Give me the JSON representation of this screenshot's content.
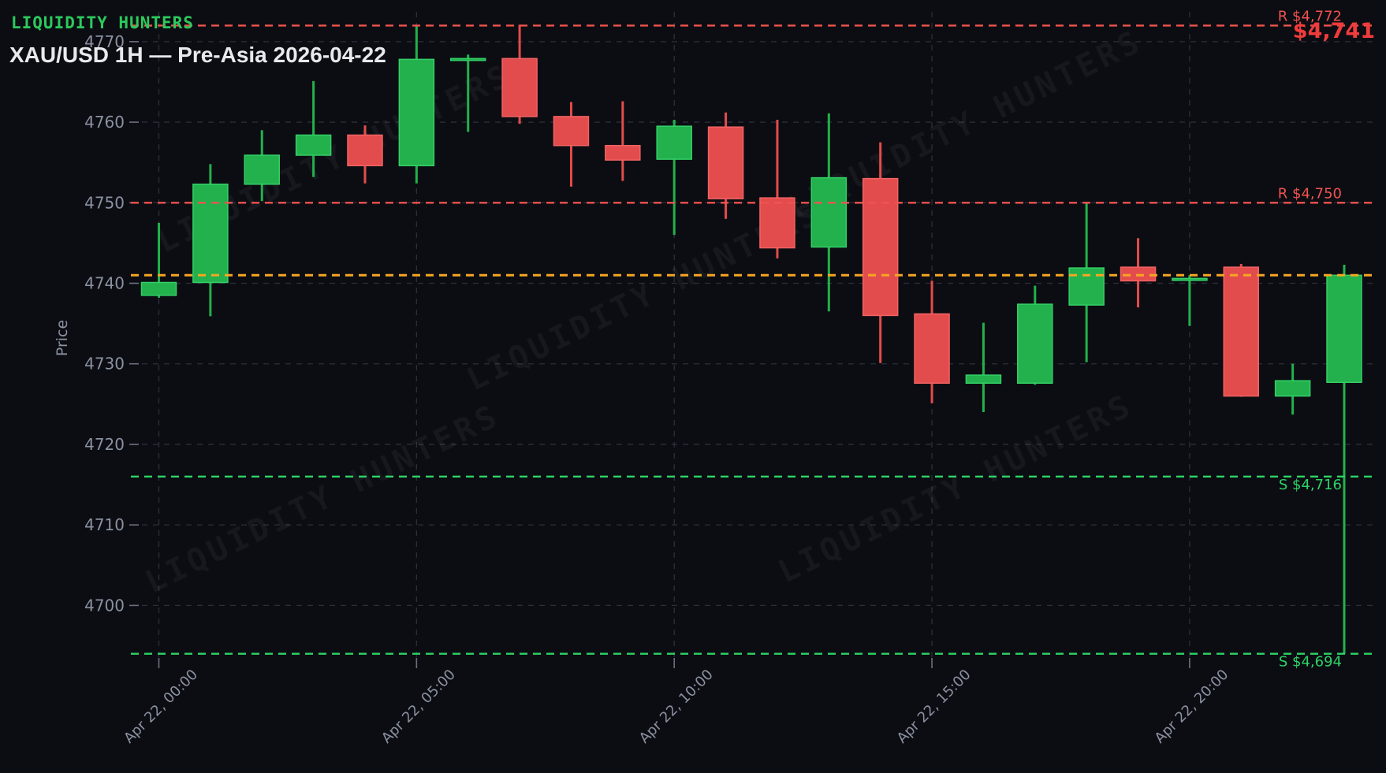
{
  "header": {
    "brand": "LIQUIDITY HUNTERS",
    "title": "XAU/USD 1H — Pre-Asia 2026-04-22"
  },
  "chart_data": {
    "type": "candlestick",
    "title": "XAU/USD 1H — Pre-Asia 2026-04-22",
    "watermark": "LIQUIDITY HUNTERS",
    "ylabel": "Price",
    "ylim": [
      4692.7,
      4773.8
    ],
    "y_ticks": [
      4700,
      4710,
      4720,
      4730,
      4740,
      4750,
      4760,
      4770
    ],
    "x_ticks": [
      {
        "label": "Apr 22, 00:00",
        "index": 0
      },
      {
        "label": "Apr 22, 05:00",
        "index": 5
      },
      {
        "label": "Apr 22, 10:00",
        "index": 10
      },
      {
        "label": "Apr 22, 15:00",
        "index": 15
      },
      {
        "label": "Apr 22, 20:00",
        "index": 20
      }
    ],
    "candles": [
      {
        "o": 4738.5,
        "h": 4747.5,
        "l": 4738.2,
        "c": 4740.1
      },
      {
        "o": 4740.1,
        "h": 4754.8,
        "l": 4735.9,
        "c": 4752.3
      },
      {
        "o": 4752.3,
        "h": 4759.0,
        "l": 4750.2,
        "c": 4755.9
      },
      {
        "o": 4755.9,
        "h": 4765.1,
        "l": 4753.2,
        "c": 4758.4
      },
      {
        "o": 4758.4,
        "h": 4759.6,
        "l": 4752.4,
        "c": 4754.6
      },
      {
        "o": 4754.6,
        "h": 4772.0,
        "l": 4752.4,
        "c": 4767.8
      },
      {
        "o": 4767.8,
        "h": 4768.4,
        "l": 4758.8,
        "c": 4767.9
      },
      {
        "o": 4767.9,
        "h": 4772.1,
        "l": 4759.8,
        "c": 4760.7
      },
      {
        "o": 4760.7,
        "h": 4762.5,
        "l": 4752.0,
        "c": 4757.1
      },
      {
        "o": 4757.1,
        "h": 4762.6,
        "l": 4752.7,
        "c": 4755.3
      },
      {
        "o": 4755.4,
        "h": 4760.3,
        "l": 4746.0,
        "c": 4759.5
      },
      {
        "o": 4759.4,
        "h": 4761.2,
        "l": 4748.0,
        "c": 4750.5
      },
      {
        "o": 4750.6,
        "h": 4760.3,
        "l": 4743.1,
        "c": 4744.4
      },
      {
        "o": 4744.5,
        "h": 4761.1,
        "l": 4736.5,
        "c": 4753.1
      },
      {
        "o": 4753.0,
        "h": 4757.5,
        "l": 4730.1,
        "c": 4736.0
      },
      {
        "o": 4736.2,
        "h": 4740.3,
        "l": 4725.1,
        "c": 4727.6
      },
      {
        "o": 4727.6,
        "h": 4735.1,
        "l": 4724.0,
        "c": 4728.6
      },
      {
        "o": 4727.6,
        "h": 4739.7,
        "l": 4727.4,
        "c": 4737.4
      },
      {
        "o": 4737.3,
        "h": 4750.1,
        "l": 4730.2,
        "c": 4741.9
      },
      {
        "o": 4742.0,
        "h": 4745.6,
        "l": 4737.0,
        "c": 4740.3
      },
      {
        "o": 4740.4,
        "h": 4741.0,
        "l": 4734.7,
        "c": 4740.6
      },
      {
        "o": 4742.0,
        "h": 4742.4,
        "l": 4725.9,
        "c": 4726.0
      },
      {
        "o": 4726.0,
        "h": 4730.0,
        "l": 4723.7,
        "c": 4727.9
      },
      {
        "o": 4727.7,
        "h": 4742.3,
        "l": 4694.0,
        "c": 4741.0
      }
    ],
    "levels": [
      {
        "label": "R $4,772",
        "price": 4772,
        "role": "resistance"
      },
      {
        "label": "R $4,750",
        "price": 4750,
        "role": "resistance"
      },
      {
        "label": "S $4,716",
        "price": 4716,
        "role": "support"
      },
      {
        "label": "S $4,694",
        "price": 4694,
        "role": "support"
      }
    ],
    "current_price_line": {
      "price": 4741,
      "label": "$4,741"
    }
  },
  "colors": {
    "background": "#0c0d12",
    "bullish": "#22b14c",
    "bullish_edge": "#34d068",
    "bearish": "#e34c4c",
    "bearish_edge": "#f16363",
    "resistance": "#ef5350",
    "support": "#2dd466",
    "current_price": "#f5a623",
    "current_price_label": "#f03c3c",
    "grid": "#2b2f3b",
    "tick_mark": "#6a7080",
    "tick_text": "#8a91a1",
    "brand": "#2cc95c",
    "title_text": "#e8e9ed",
    "watermark": "rgba(226,232,245,0.05)"
  }
}
